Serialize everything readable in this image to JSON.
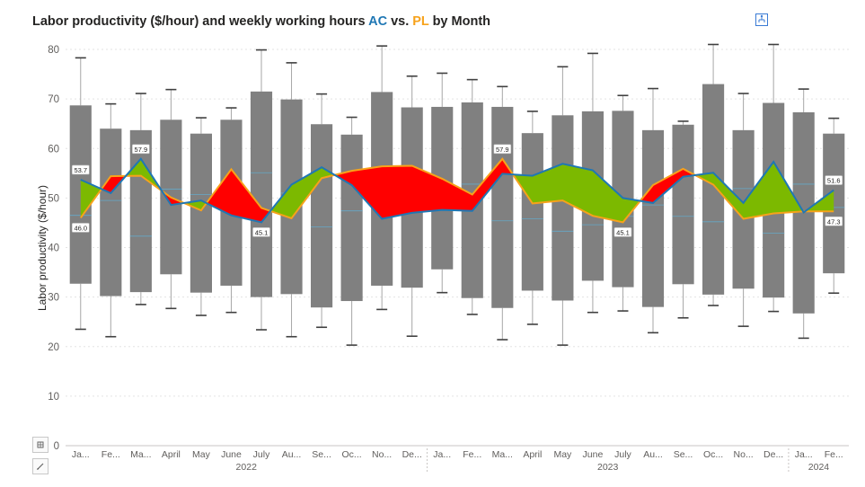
{
  "title": {
    "prefix": "Labor productivity ($/hour) and weekly working hours ",
    "ac": "AC",
    "vs": " vs. ",
    "pl": "PL",
    "suffix": " by Month"
  },
  "colors": {
    "box": "#808080",
    "ac_line": "#1f77b4",
    "pl_line": "#f7a21b",
    "positive_fill": "#7cb900",
    "negative_fill": "#ff0000",
    "grid": "#e3e3e3"
  },
  "icons": {
    "hierarchy": "hierarchy-icon",
    "side_top": "grid-icon",
    "side_bottom": "pencil-icon"
  },
  "chart_data": {
    "type": "box-with-variance-area",
    "ylabel": "Labor productivity ($/hour)",
    "ylim": [
      0,
      80
    ],
    "yticks": [
      0,
      10,
      20,
      30,
      40,
      50,
      60,
      70,
      80
    ],
    "grid": true,
    "categories": [
      "Ja...",
      "Fe...",
      "Ma...",
      "April",
      "May",
      "June",
      "July",
      "Au...",
      "Se...",
      "Oc...",
      "No...",
      "De...",
      "Ja...",
      "Fe...",
      "Ma...",
      "April",
      "May",
      "June",
      "July",
      "Au...",
      "Se...",
      "Oc...",
      "No...",
      "De...",
      "Ja...",
      "Fe..."
    ],
    "years": [
      {
        "label": "2022",
        "start": 0,
        "end": 11
      },
      {
        "label": "2023",
        "start": 12,
        "end": 23
      },
      {
        "label": "2024",
        "start": 24,
        "end": 25
      }
    ],
    "boxes": [
      {
        "min": 23.5,
        "q1": 32.7,
        "median": 46.5,
        "q3": 68.7,
        "max": 78.3
      },
      {
        "min": 22.0,
        "q1": 30.2,
        "median": 49.5,
        "q3": 64.0,
        "max": 69.0
      },
      {
        "min": 28.5,
        "q1": 31.0,
        "median": 42.3,
        "q3": 63.7,
        "max": 71.1
      },
      {
        "min": 27.7,
        "q1": 34.6,
        "median": 51.8,
        "q3": 65.8,
        "max": 71.9
      },
      {
        "min": 26.3,
        "q1": 30.9,
        "median": 50.7,
        "q3": 63.0,
        "max": 66.2
      },
      {
        "min": 26.9,
        "q1": 32.3,
        "median": 48.5,
        "q3": 65.8,
        "max": 68.2
      },
      {
        "min": 23.4,
        "q1": 30.0,
        "median": 55.1,
        "q3": 71.5,
        "max": 79.9
      },
      {
        "min": 22.0,
        "q1": 30.6,
        "median": 51.0,
        "q3": 69.9,
        "max": 77.3
      },
      {
        "min": 23.9,
        "q1": 27.9,
        "median": 44.2,
        "q3": 64.9,
        "max": 71.0
      },
      {
        "min": 20.3,
        "q1": 29.2,
        "median": 47.4,
        "q3": 62.8,
        "max": 66.3
      },
      {
        "min": 27.5,
        "q1": 32.3,
        "median": 51.5,
        "q3": 71.4,
        "max": 80.7
      },
      {
        "min": 22.1,
        "q1": 31.9,
        "median": 52.1,
        "q3": 68.3,
        "max": 74.6
      },
      {
        "min": 30.9,
        "q1": 35.6,
        "median": 52.6,
        "q3": 68.4,
        "max": 75.2
      },
      {
        "min": 26.5,
        "q1": 29.8,
        "median": 52.8,
        "q3": 69.3,
        "max": 73.9
      },
      {
        "min": 21.4,
        "q1": 27.8,
        "median": 45.4,
        "q3": 68.4,
        "max": 72.5
      },
      {
        "min": 24.5,
        "q1": 31.3,
        "median": 45.8,
        "q3": 63.1,
        "max": 67.5
      },
      {
        "min": 20.3,
        "q1": 29.3,
        "median": 43.3,
        "q3": 66.7,
        "max": 76.5
      },
      {
        "min": 26.9,
        "q1": 33.3,
        "median": 44.6,
        "q3": 67.5,
        "max": 79.2
      },
      {
        "min": 27.2,
        "q1": 32.0,
        "median": 46.3,
        "q3": 67.6,
        "max": 70.7
      },
      {
        "min": 22.8,
        "q1": 28.0,
        "median": 48.6,
        "q3": 63.7,
        "max": 72.1
      },
      {
        "min": 25.8,
        "q1": 32.6,
        "median": 46.3,
        "q3": 64.8,
        "max": 65.5
      },
      {
        "min": 28.3,
        "q1": 30.5,
        "median": 45.2,
        "q3": 73.0,
        "max": 81.0
      },
      {
        "min": 24.1,
        "q1": 31.7,
        "median": 51.9,
        "q3": 63.7,
        "max": 71.1
      },
      {
        "min": 27.1,
        "q1": 29.9,
        "median": 42.9,
        "q3": 69.2,
        "max": 81.0
      },
      {
        "min": 21.7,
        "q1": 26.7,
        "median": 52.8,
        "q3": 67.3,
        "max": 72.0
      },
      {
        "min": 30.8,
        "q1": 34.8,
        "median": 48.1,
        "q3": 63.0,
        "max": 66.1
      }
    ],
    "series": [
      {
        "name": "AC",
        "values": [
          53.7,
          51.0,
          57.9,
          48.6,
          49.5,
          46.5,
          45.1,
          52.7,
          56.2,
          52.6,
          45.8,
          47.0,
          47.6,
          47.4,
          54.9,
          54.5,
          56.9,
          55.6,
          50.0,
          49.0,
          54.3,
          55.1,
          49.0,
          57.3,
          47.1,
          51.6
        ]
      },
      {
        "name": "PL",
        "values": [
          46.0,
          54.4,
          54.5,
          50.1,
          47.5,
          55.8,
          48.0,
          45.9,
          54.0,
          55.5,
          56.4,
          56.5,
          53.9,
          50.7,
          57.9,
          48.9,
          49.5,
          46.4,
          45.1,
          52.6,
          55.9,
          52.7,
          45.8,
          46.9,
          47.3,
          47.3
        ]
      }
    ],
    "data_labels": [
      {
        "index": 0,
        "series": "AC",
        "text": "53.7",
        "pos": "above"
      },
      {
        "index": 0,
        "series": "PL",
        "text": "46.0",
        "pos": "below"
      },
      {
        "index": 2,
        "series": "AC",
        "text": "57.9",
        "pos": "above"
      },
      {
        "index": 6,
        "series": "AC",
        "text": "45.1",
        "pos": "below"
      },
      {
        "index": 14,
        "series": "PL",
        "text": "57.9",
        "pos": "above"
      },
      {
        "index": 18,
        "series": "PL",
        "text": "45.1",
        "pos": "below"
      },
      {
        "index": 25,
        "series": "AC",
        "text": "51.6",
        "pos": "above"
      },
      {
        "index": 25,
        "series": "PL",
        "text": "47.3",
        "pos": "below"
      }
    ]
  }
}
